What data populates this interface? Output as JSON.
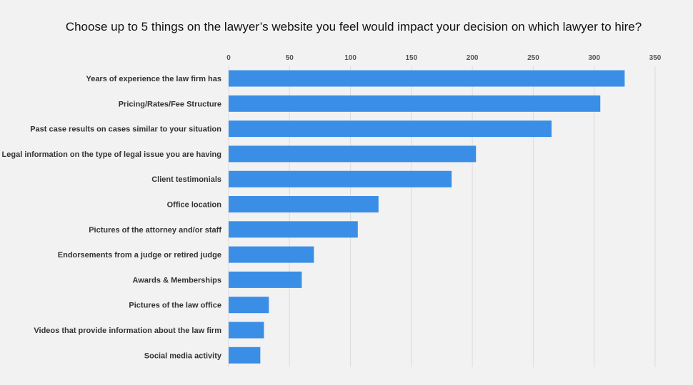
{
  "chart_data": {
    "type": "bar",
    "orientation": "horizontal",
    "title": "Choose up to 5 things on the lawyer’s website you feel would impact your decision on which lawyer to hire?",
    "xlabel": "",
    "ylabel": "",
    "xlim": [
      0,
      350
    ],
    "ticks": [
      "0",
      "50",
      "100",
      "150",
      "200",
      "250",
      "300",
      "350"
    ],
    "tick_values": [
      0,
      50,
      100,
      150,
      200,
      250,
      300,
      350
    ],
    "grid": true,
    "bar_color": "#3a8ee6",
    "categories": [
      "Years of experience the law firm has",
      "Pricing/Rates/Fee Structure",
      "Past case results on cases similar to your situation",
      "Legal information on the type of legal issue you are having",
      "Client testimonials",
      "Office location",
      "Pictures of the attorney and/or staff",
      "Endorsements from a judge or retired judge",
      "Awards & Memberships",
      "Pictures of the law office",
      "Videos that provide information about the law firm",
      "Social media activity"
    ],
    "values": [
      325,
      305,
      265,
      203,
      183,
      123,
      106,
      70,
      60,
      33,
      29,
      26
    ]
  }
}
